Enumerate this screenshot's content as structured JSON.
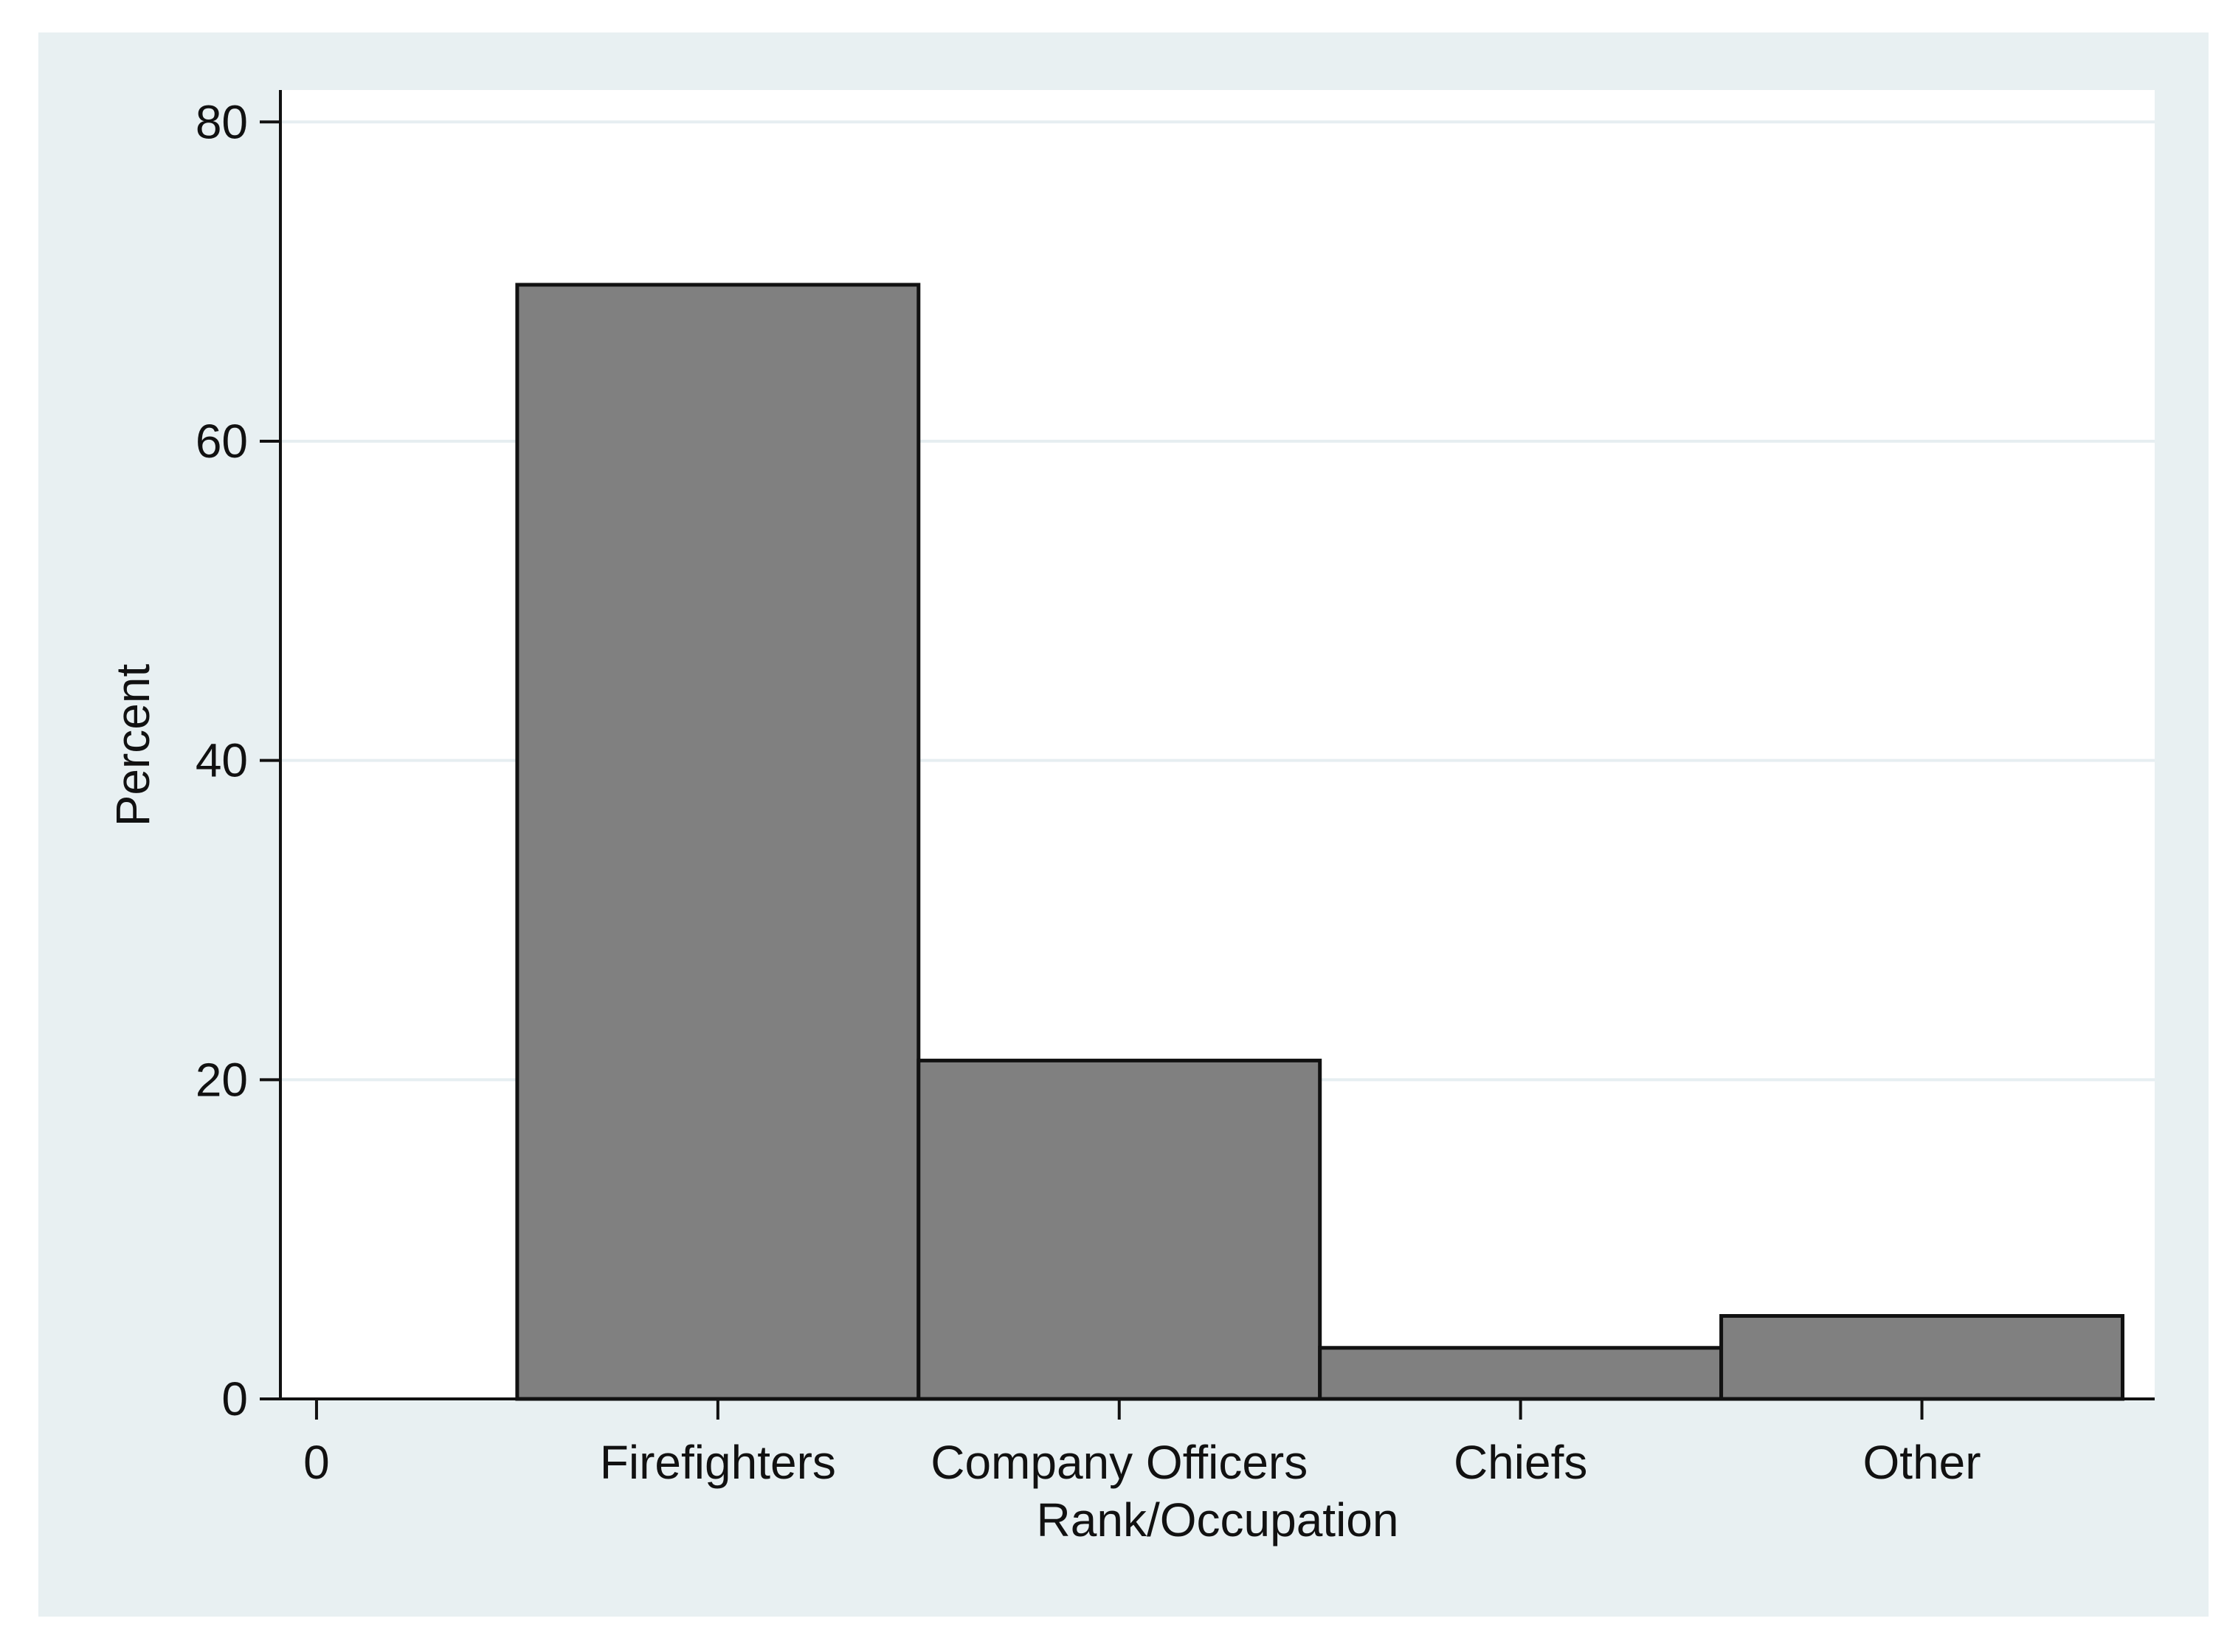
{
  "colors": {
    "page_background": "#ffffff",
    "chart_background": "#e8f0f2",
    "plot_background": "#ffffff",
    "gridline": "#e6eef1",
    "bar_fill": "#808080",
    "bar_stroke": "#111111",
    "axis": "#111111"
  },
  "chart_data": {
    "type": "bar",
    "title": "",
    "xlabel": "Rank/Occupation",
    "ylabel": "Percent",
    "ylim": [
      0,
      82
    ],
    "yticks": [
      0,
      20,
      40,
      60,
      80
    ],
    "grid": true,
    "x_tick_labels": [
      "0",
      "Firefighters",
      "Company Officers",
      "Chiefs",
      "Other"
    ],
    "x_tick_positions": [
      0,
      1,
      2,
      3,
      4
    ],
    "xlim": [
      -0.09,
      4.58
    ],
    "categories": [
      "Firefighters",
      "Company Officers",
      "Chiefs",
      "Other"
    ],
    "bar_edges": [
      [
        0.5,
        1.5
      ],
      [
        1.5,
        2.5
      ],
      [
        2.5,
        3.5
      ],
      [
        3.5,
        4.5
      ]
    ],
    "values": [
      69.8,
      21.2,
      3.2,
      5.2
    ]
  }
}
